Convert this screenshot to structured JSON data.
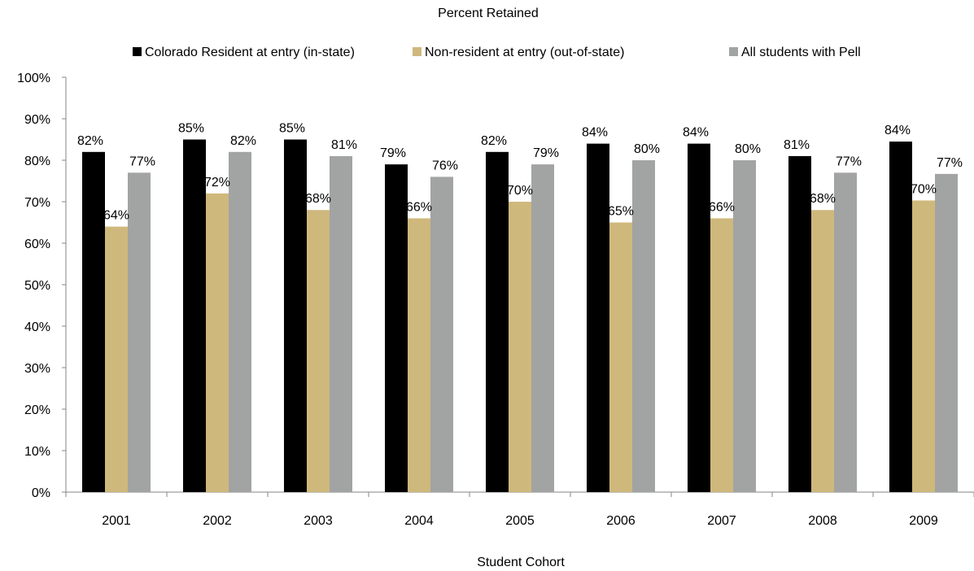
{
  "chart_data": {
    "type": "bar",
    "title": "Percent Retained",
    "xlabel": "Student Cohort",
    "ylabel": "",
    "ylim": [
      0,
      100
    ],
    "yticks": [
      "0%",
      "10%",
      "20%",
      "30%",
      "40%",
      "50%",
      "60%",
      "70%",
      "80%",
      "90%",
      "100%"
    ],
    "categories": [
      "2001",
      "2002",
      "2003",
      "2004",
      "2005",
      "2006",
      "2007",
      "2008",
      "2009"
    ],
    "legend_position": "top",
    "grid": false,
    "series": [
      {
        "name": "Colorado Resident at entry (in-state)",
        "color": "#000000",
        "values": [
          82,
          85,
          85,
          79,
          82,
          84,
          84,
          81,
          84.5
        ],
        "labels": [
          "82%",
          "85%",
          "85%",
          "79%",
          "82%",
          "84%",
          "84%",
          "81%",
          "84%"
        ]
      },
      {
        "name": "Non-resident at entry (out-of-state)",
        "color": "#cfb87c",
        "values": [
          64,
          72,
          68,
          66,
          70,
          65,
          66,
          68,
          70.3
        ],
        "labels": [
          "64%",
          "72%",
          "68%",
          "66%",
          "70%",
          "65%",
          "66%",
          "68%",
          "70%"
        ]
      },
      {
        "name": "All students with Pell",
        "color": "#a2a4a3",
        "values": [
          77,
          82,
          81,
          76,
          79,
          80,
          80,
          77,
          76.7
        ],
        "labels": [
          "77%",
          "82%",
          "81%",
          "76%",
          "79%",
          "80%",
          "80%",
          "77%",
          "77%"
        ]
      }
    ]
  }
}
